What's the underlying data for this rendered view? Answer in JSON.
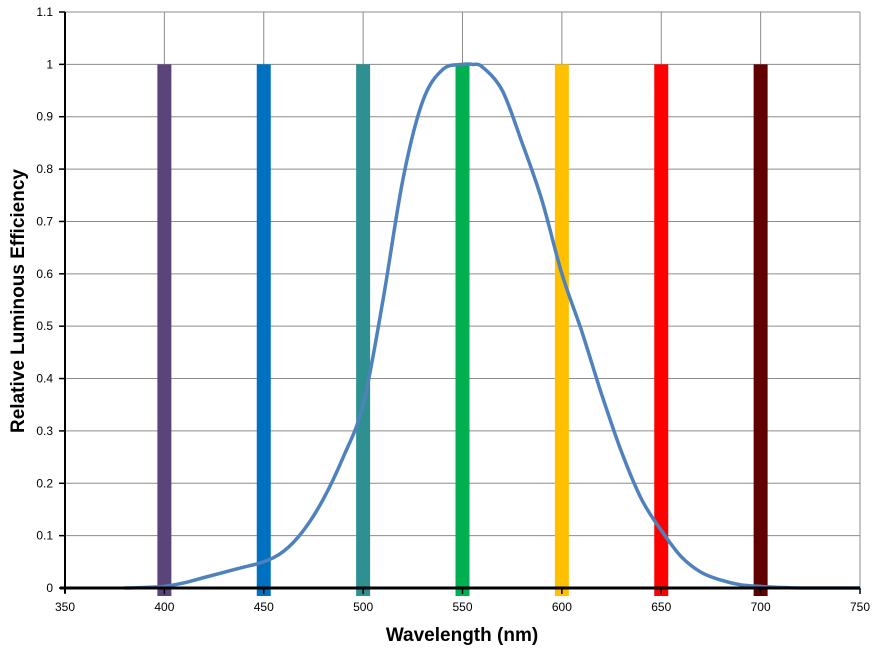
{
  "chart_data": {
    "type": "line",
    "title": "",
    "xlabel": "Wavelength (nm)",
    "ylabel": "Relative Luminous Efficiency",
    "xlim": [
      350,
      750
    ],
    "ylim": [
      0,
      1.1
    ],
    "x_ticks": [
      350,
      400,
      450,
      500,
      550,
      600,
      650,
      700,
      750
    ],
    "y_ticks": [
      0,
      0.1,
      0.2,
      0.3,
      0.4,
      0.5,
      0.6,
      0.7,
      0.8,
      0.9,
      1,
      1.1
    ],
    "x_tick_labels": [
      "350",
      "400",
      "450",
      "500",
      "550",
      "600",
      "650",
      "700",
      "750"
    ],
    "y_tick_labels": [
      "0",
      "0.1",
      "0.2",
      "0.3",
      "0.4",
      "0.5",
      "0.6",
      "0.7",
      "0.8",
      "0.9",
      "1",
      "1.1"
    ],
    "grid": "horizontal and vertical",
    "legend": "none",
    "series": [
      {
        "color": "#4f81bd",
        "x": [
          380,
          390,
          400,
          410,
          420,
          430,
          440,
          450,
          460,
          470,
          480,
          490,
          500,
          510,
          520,
          530,
          540,
          550,
          555,
          560,
          570,
          580,
          590,
          600,
          610,
          620,
          630,
          640,
          650,
          660,
          670,
          680,
          690,
          700,
          710,
          720,
          730,
          750
        ],
        "y": [
          0.0,
          0.001,
          0.003,
          0.01,
          0.02,
          0.03,
          0.04,
          0.05,
          0.07,
          0.11,
          0.17,
          0.25,
          0.35,
          0.55,
          0.78,
          0.93,
          0.99,
          1.0,
          1.0,
          0.995,
          0.95,
          0.85,
          0.74,
          0.6,
          0.49,
          0.37,
          0.26,
          0.17,
          0.11,
          0.06,
          0.03,
          0.015,
          0.006,
          0.003,
          0.001,
          0.0,
          0.0,
          0.0
        ]
      }
    ],
    "bars": [
      {
        "x": 400,
        "value": 1,
        "color": "#5a4479"
      },
      {
        "x": 450,
        "value": 1,
        "color": "#0070c0"
      },
      {
        "x": 500,
        "value": 1,
        "color": "#2e9090"
      },
      {
        "x": 550,
        "value": 1,
        "color": "#00b050"
      },
      {
        "x": 600,
        "value": 1,
        "color": "#ffc000"
      },
      {
        "x": 650,
        "value": 1,
        "color": "#ff0000"
      },
      {
        "x": 700,
        "value": 1,
        "color": "#600000"
      }
    ]
  }
}
